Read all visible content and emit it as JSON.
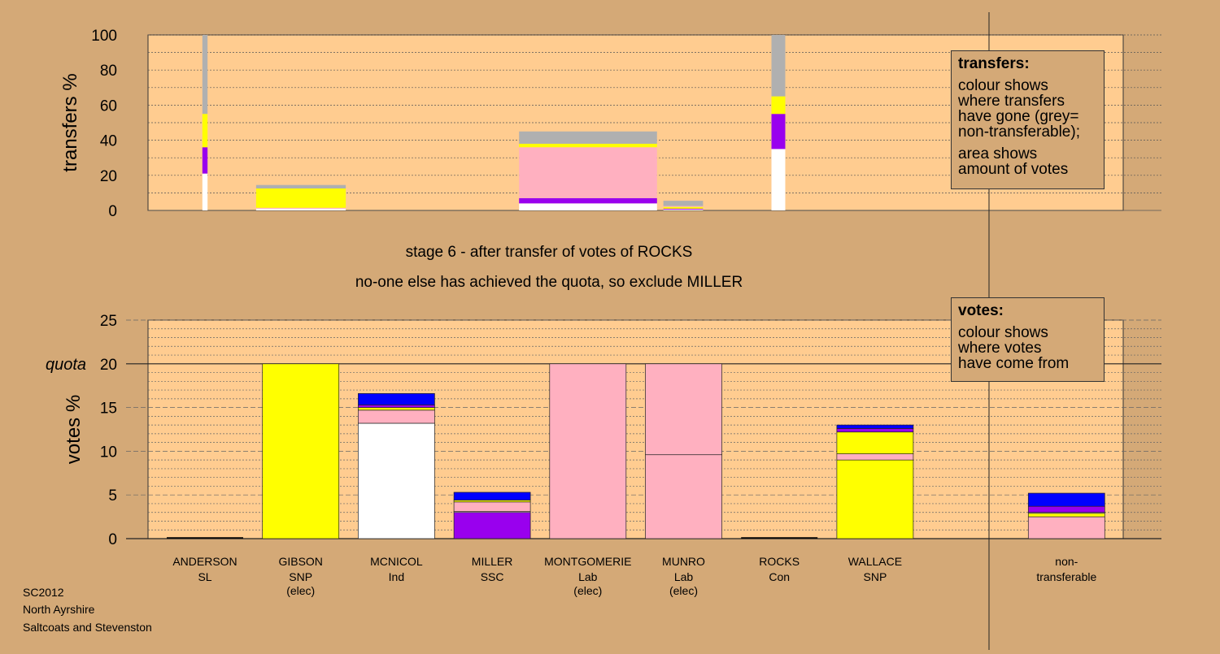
{
  "header": {
    "stage_line": "stage 6 - after transfer of votes of ROCKS",
    "note_line": "no-one else has achieved the quota, so exclude MILLER"
  },
  "footer": {
    "line1": "SC2012",
    "line2": "North Ayrshire",
    "line3": "Saltcoats and Stevenston"
  },
  "legend_transfers": {
    "title": "transfers:",
    "lines1": [
      "colour shows",
      "where transfers",
      "have gone (grey=",
      "non-transferable);"
    ],
    "lines2": [
      "area shows",
      "amount of votes"
    ]
  },
  "legend_votes": {
    "title": "votes:",
    "lines": [
      "colour shows",
      "where votes",
      "have come from"
    ]
  },
  "colors": {
    "background": "#d4a977",
    "plot_bg": "#ffcc90",
    "white": "#ffffff",
    "purple": "#9900ee",
    "yellow": "#ffff00",
    "pink": "#ffb0c0",
    "grey": "#b0b0b0",
    "blue": "#0000ff"
  },
  "chart_data": [
    {
      "type": "bar",
      "subtype": "variable-width stacked (transfer destinations)",
      "ylabel": "transfers %",
      "ylim": [
        0,
        100
      ],
      "yticks": [
        0,
        20,
        40,
        60,
        80,
        100
      ],
      "segments_bottom_to_top": "colour of destination",
      "bars": [
        {
          "candidate": "ANDERSON",
          "width_share": 0.3,
          "segments": [
            {
              "color": "white",
              "value": 21
            },
            {
              "color": "purple",
              "value": 15
            },
            {
              "color": "yellow",
              "value": 19
            },
            {
              "color": "grey",
              "value": 45
            }
          ]
        },
        {
          "candidate": "GIBSON",
          "width_share": 5.2,
          "segments": [
            {
              "color": "white",
              "value": 1
            },
            {
              "color": "pink",
              "value": 0.5
            },
            {
              "color": "yellow",
              "value": 11
            },
            {
              "color": "grey",
              "value": 2
            }
          ]
        },
        {
          "candidate": "MONTGOMERIE",
          "width_share": 8.0,
          "segments": [
            {
              "color": "white",
              "value": 4
            },
            {
              "color": "purple",
              "value": 3
            },
            {
              "color": "pink",
              "value": 29
            },
            {
              "color": "yellow",
              "value": 2
            },
            {
              "color": "grey",
              "value": 7
            }
          ]
        },
        {
          "candidate": "MUNRO",
          "width_share": 2.3,
          "segments": [
            {
              "color": "white",
              "value": 0.5
            },
            {
              "color": "purple",
              "value": 0.5
            },
            {
              "color": "yellow",
              "value": 1
            },
            {
              "color": "pink",
              "value": 0.5
            },
            {
              "color": "grey",
              "value": 3
            }
          ]
        },
        {
          "candidate": "ROCKS",
          "width_share": 0.8,
          "segments": [
            {
              "color": "white",
              "value": 35
            },
            {
              "color": "purple",
              "value": 20
            },
            {
              "color": "yellow",
              "value": 10
            },
            {
              "color": "grey",
              "value": 35
            }
          ]
        }
      ]
    },
    {
      "type": "bar",
      "subtype": "stacked (vote origins)",
      "ylabel": "votes %",
      "ylim": [
        0,
        25
      ],
      "yticks": [
        0,
        5,
        10,
        15,
        20,
        25
      ],
      "quota": 20,
      "quota_label": "quota",
      "candidates": [
        {
          "name": "ANDERSON",
          "party": "SL",
          "note": "",
          "segments": []
        },
        {
          "name": "GIBSON",
          "party": "SNP",
          "note": "(elec)",
          "segments": [
            {
              "color": "yellow",
              "value": 20
            }
          ]
        },
        {
          "name": "MCNICOL",
          "party": "Ind",
          "note": "",
          "segments": [
            {
              "color": "white",
              "value": 13.2
            },
            {
              "color": "pink",
              "value": 1.5
            },
            {
              "color": "yellow",
              "value": 0.3
            },
            {
              "color": "purple",
              "value": 0.3
            },
            {
              "color": "blue",
              "value": 1.3
            }
          ]
        },
        {
          "name": "MILLER",
          "party": "SSC",
          "note": "",
          "segments": [
            {
              "color": "purple",
              "value": 3.0
            },
            {
              "color": "white",
              "value": 0.1
            },
            {
              "color": "pink",
              "value": 1.1
            },
            {
              "color": "yellow",
              "value": 0.2
            },
            {
              "color": "blue",
              "value": 0.9
            }
          ]
        },
        {
          "name": "MONTGOMERIE",
          "party": "Lab",
          "note": "(elec)",
          "segments": [
            {
              "color": "pink",
              "value": 20
            }
          ]
        },
        {
          "name": "MUNRO",
          "party": "Lab",
          "note": "(elec)",
          "segments": [
            {
              "color": "pink",
              "value": 9.6
            },
            {
              "color": "pink",
              "value": 10.4
            }
          ]
        },
        {
          "name": "ROCKS",
          "party": "Con",
          "note": "",
          "segments": []
        },
        {
          "name": "WALLACE",
          "party": "SNP",
          "note": "",
          "segments": [
            {
              "color": "yellow",
              "value": 9.0
            },
            {
              "color": "pink",
              "value": 0.7
            },
            {
              "color": "yellow",
              "value": 2.5
            },
            {
              "color": "purple",
              "value": 0.4
            },
            {
              "color": "blue",
              "value": 0.4
            }
          ]
        },
        {
          "name": "",
          "party": "",
          "note": "",
          "segments": []
        },
        {
          "name": "non-",
          "party": "transferable",
          "note": "",
          "segments": [
            {
              "color": "pink",
              "value": 2.5
            },
            {
              "color": "yellow",
              "value": 0.4
            },
            {
              "color": "white",
              "value": 0.1
            },
            {
              "color": "purple",
              "value": 0.7
            },
            {
              "color": "blue",
              "value": 1.5
            }
          ]
        }
      ]
    }
  ]
}
